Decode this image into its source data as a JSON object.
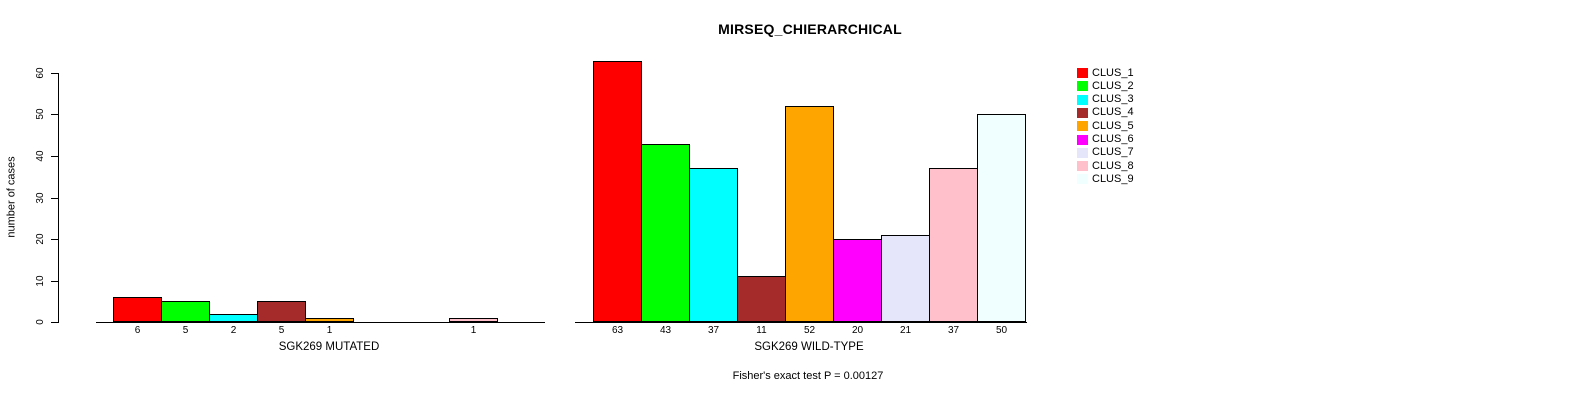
{
  "chart_data": {
    "type": "bar",
    "title": "MIRSEQ_CHIERARCHICAL",
    "ylabel": "number of cases",
    "ylim": [
      0,
      63
    ],
    "yticks": [
      0,
      10,
      20,
      30,
      40,
      50,
      60
    ],
    "grid": false,
    "legend_position": "right",
    "categories": [
      "CLUS_1",
      "CLUS_2",
      "CLUS_3",
      "CLUS_4",
      "CLUS_5",
      "CLUS_6",
      "CLUS_7",
      "CLUS_8",
      "CLUS_9"
    ],
    "colors": [
      "#ff0000",
      "#00ff00",
      "#00ffff",
      "#a52a2a",
      "#ffa500",
      "#ff00ff",
      "#e6e6fa",
      "#ffc0cb",
      "#f0ffff"
    ],
    "panels": [
      {
        "xlabel": "SGK269 MUTATED",
        "values": [
          6,
          5,
          2,
          5,
          1,
          0,
          0,
          1,
          0
        ]
      },
      {
        "xlabel": "SGK269 WILD-TYPE",
        "values": [
          63,
          43,
          37,
          11,
          52,
          20,
          21,
          37,
          50
        ]
      }
    ],
    "annotation": "Fisher's exact test P = 0.00127"
  }
}
